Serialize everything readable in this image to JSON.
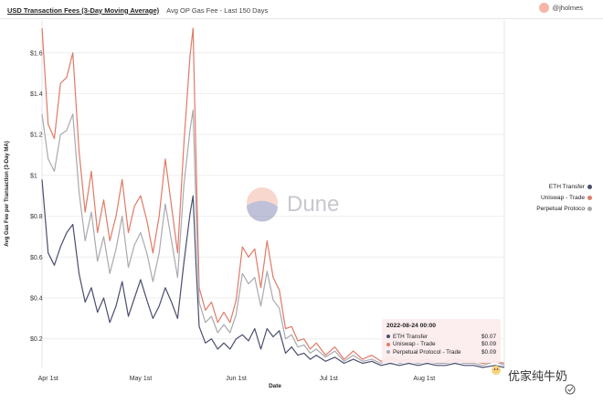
{
  "header": {
    "title": "USD Transaction Fees (3-Day Moving Average)",
    "subtitle": "Avg OP Gas Fee - Last 150 Days",
    "author": "@jholmes"
  },
  "watermark": {
    "brand": "Dune",
    "corner_text": "优家纯牛奶"
  },
  "colors": {
    "eth": "#4a4e6e",
    "uniswap": "#e07a66",
    "perp": "#a9a9b0",
    "avatar": "#f4b7a8"
  },
  "tooltip": {
    "title": "2022-08-24 00:00",
    "rows": [
      {
        "label": "ETH Transfer",
        "value": "$0.07"
      },
      {
        "label": "Uniswap - Trade",
        "value": "$0.09"
      },
      {
        "label": "Perpetual Protocol - Trade",
        "value": "$0.09"
      }
    ]
  },
  "chart_data": {
    "type": "line",
    "title": "",
    "xlabel": "Date",
    "ylabel": "Avg Gas Fee per Transaction (3-Day MA)",
    "ylim": [
      0.06,
      1.76
    ],
    "yticks": [
      0.2,
      0.4,
      0.6,
      0.8,
      1,
      1.2,
      1.4,
      1.6
    ],
    "ytick_labels": [
      "$0.2",
      "$0.4",
      "$0.6",
      "$0.8",
      "$1",
      "$1.2",
      "$1.4",
      "$1.6"
    ],
    "x_start": "2022-03-30",
    "xlim": [
      "2022-03-30",
      "2022-08-27"
    ],
    "xticks": [
      "2022-04-01",
      "2022-05-01",
      "2022-06-01",
      "2022-07-01",
      "2022-08-01"
    ],
    "xtick_labels": [
      "Apr 1st",
      "May 1st",
      "Jun 1st",
      "Jul 1st",
      "Aug 1st"
    ],
    "legend_position": "right",
    "grid": "y",
    "series": [
      {
        "name": "ETH Transfer",
        "color": "#4a4e6e",
        "points": [
          [
            "2022-03-30",
            0.98
          ],
          [
            "2022-04-01",
            0.62
          ],
          [
            "2022-04-03",
            0.56
          ],
          [
            "2022-04-05",
            0.65
          ],
          [
            "2022-04-07",
            0.72
          ],
          [
            "2022-04-09",
            0.76
          ],
          [
            "2022-04-11",
            0.52
          ],
          [
            "2022-04-13",
            0.38
          ],
          [
            "2022-04-15",
            0.45
          ],
          [
            "2022-04-17",
            0.33
          ],
          [
            "2022-04-19",
            0.4
          ],
          [
            "2022-04-21",
            0.28
          ],
          [
            "2022-04-23",
            0.36
          ],
          [
            "2022-04-25",
            0.48
          ],
          [
            "2022-04-27",
            0.31
          ],
          [
            "2022-04-29",
            0.4
          ],
          [
            "2022-05-01",
            0.49
          ],
          [
            "2022-05-03",
            0.39
          ],
          [
            "2022-05-05",
            0.3
          ],
          [
            "2022-05-07",
            0.36
          ],
          [
            "2022-05-09",
            0.45
          ],
          [
            "2022-05-11",
            0.38
          ],
          [
            "2022-05-13",
            0.3
          ],
          [
            "2022-05-15",
            0.57
          ],
          [
            "2022-05-17",
            0.81
          ],
          [
            "2022-05-18",
            0.9
          ],
          [
            "2022-05-19",
            0.55
          ],
          [
            "2022-05-20",
            0.26
          ],
          [
            "2022-05-22",
            0.18
          ],
          [
            "2022-05-24",
            0.2
          ],
          [
            "2022-05-26",
            0.15
          ],
          [
            "2022-05-28",
            0.18
          ],
          [
            "2022-05-30",
            0.15
          ],
          [
            "2022-06-01",
            0.2
          ],
          [
            "2022-06-03",
            0.22
          ],
          [
            "2022-06-05",
            0.19
          ],
          [
            "2022-06-07",
            0.25
          ],
          [
            "2022-06-09",
            0.15
          ],
          [
            "2022-06-11",
            0.25
          ],
          [
            "2022-06-13",
            0.21
          ],
          [
            "2022-06-15",
            0.24
          ],
          [
            "2022-06-17",
            0.13
          ],
          [
            "2022-06-19",
            0.16
          ],
          [
            "2022-06-21",
            0.12
          ],
          [
            "2022-06-23",
            0.13
          ],
          [
            "2022-06-25",
            0.1
          ],
          [
            "2022-06-27",
            0.12
          ],
          [
            "2022-06-30",
            0.09
          ],
          [
            "2022-07-03",
            0.11
          ],
          [
            "2022-07-06",
            0.08
          ],
          [
            "2022-07-09",
            0.1
          ],
          [
            "2022-07-12",
            0.08
          ],
          [
            "2022-07-15",
            0.09
          ],
          [
            "2022-07-18",
            0.07
          ],
          [
            "2022-07-21",
            0.08
          ],
          [
            "2022-07-24",
            0.07
          ],
          [
            "2022-07-27",
            0.08
          ],
          [
            "2022-07-30",
            0.07
          ],
          [
            "2022-08-02",
            0.08
          ],
          [
            "2022-08-05",
            0.07
          ],
          [
            "2022-08-08",
            0.07
          ],
          [
            "2022-08-11",
            0.08
          ],
          [
            "2022-08-14",
            0.07
          ],
          [
            "2022-08-17",
            0.07
          ],
          [
            "2022-08-20",
            0.06
          ],
          [
            "2022-08-24",
            0.07
          ],
          [
            "2022-08-27",
            0.06
          ]
        ]
      },
      {
        "name": "Uniswap - Trade",
        "color": "#e07a66",
        "points": [
          [
            "2022-03-30",
            1.72
          ],
          [
            "2022-04-01",
            1.25
          ],
          [
            "2022-04-03",
            1.18
          ],
          [
            "2022-04-05",
            1.45
          ],
          [
            "2022-04-07",
            1.48
          ],
          [
            "2022-04-09",
            1.6
          ],
          [
            "2022-04-11",
            1.12
          ],
          [
            "2022-04-13",
            0.82
          ],
          [
            "2022-04-15",
            1.02
          ],
          [
            "2022-04-17",
            0.72
          ],
          [
            "2022-04-19",
            0.88
          ],
          [
            "2022-04-21",
            0.68
          ],
          [
            "2022-04-23",
            0.8
          ],
          [
            "2022-04-25",
            0.98
          ],
          [
            "2022-04-27",
            0.72
          ],
          [
            "2022-04-29",
            0.85
          ],
          [
            "2022-05-01",
            0.9
          ],
          [
            "2022-05-03",
            0.78
          ],
          [
            "2022-05-05",
            0.62
          ],
          [
            "2022-05-07",
            0.8
          ],
          [
            "2022-05-09",
            1.08
          ],
          [
            "2022-05-11",
            0.85
          ],
          [
            "2022-05-13",
            0.62
          ],
          [
            "2022-05-15",
            1.15
          ],
          [
            "2022-05-17",
            1.58
          ],
          [
            "2022-05-18",
            1.72
          ],
          [
            "2022-05-19",
            1.05
          ],
          [
            "2022-05-20",
            0.45
          ],
          [
            "2022-05-22",
            0.34
          ],
          [
            "2022-05-24",
            0.38
          ],
          [
            "2022-05-26",
            0.28
          ],
          [
            "2022-05-28",
            0.33
          ],
          [
            "2022-05-30",
            0.28
          ],
          [
            "2022-06-01",
            0.39
          ],
          [
            "2022-06-03",
            0.65
          ],
          [
            "2022-06-05",
            0.6
          ],
          [
            "2022-06-07",
            0.64
          ],
          [
            "2022-06-09",
            0.45
          ],
          [
            "2022-06-11",
            0.68
          ],
          [
            "2022-06-13",
            0.5
          ],
          [
            "2022-06-15",
            0.44
          ],
          [
            "2022-06-17",
            0.25
          ],
          [
            "2022-06-19",
            0.26
          ],
          [
            "2022-06-21",
            0.19
          ],
          [
            "2022-06-23",
            0.2
          ],
          [
            "2022-06-25",
            0.15
          ],
          [
            "2022-06-27",
            0.18
          ],
          [
            "2022-06-30",
            0.12
          ],
          [
            "2022-07-03",
            0.16
          ],
          [
            "2022-07-06",
            0.1
          ],
          [
            "2022-07-09",
            0.14
          ],
          [
            "2022-07-12",
            0.1
          ],
          [
            "2022-07-15",
            0.12
          ],
          [
            "2022-07-18",
            0.09
          ],
          [
            "2022-07-21",
            0.11
          ],
          [
            "2022-07-24",
            0.09
          ],
          [
            "2022-07-27",
            0.1
          ],
          [
            "2022-07-30",
            0.09
          ],
          [
            "2022-08-02",
            0.1
          ],
          [
            "2022-08-05",
            0.08
          ],
          [
            "2022-08-08",
            0.09
          ],
          [
            "2022-08-11",
            0.1
          ],
          [
            "2022-08-14",
            0.09
          ],
          [
            "2022-08-17",
            0.09
          ],
          [
            "2022-08-20",
            0.08
          ],
          [
            "2022-08-24",
            0.09
          ],
          [
            "2022-08-27",
            0.08
          ]
        ]
      },
      {
        "name": "Perpetual Protocol - Trade",
        "legend_label": "Perpetual Protoco",
        "color": "#a9a9b0",
        "points": [
          [
            "2022-03-30",
            1.3
          ],
          [
            "2022-04-01",
            1.08
          ],
          [
            "2022-04-03",
            1.02
          ],
          [
            "2022-04-05",
            1.2
          ],
          [
            "2022-04-07",
            1.22
          ],
          [
            "2022-04-09",
            1.3
          ],
          [
            "2022-04-11",
            0.92
          ],
          [
            "2022-04-13",
            0.68
          ],
          [
            "2022-04-15",
            0.82
          ],
          [
            "2022-04-17",
            0.58
          ],
          [
            "2022-04-19",
            0.7
          ],
          [
            "2022-04-21",
            0.52
          ],
          [
            "2022-04-23",
            0.64
          ],
          [
            "2022-04-25",
            0.8
          ],
          [
            "2022-04-27",
            0.55
          ],
          [
            "2022-04-29",
            0.66
          ],
          [
            "2022-05-01",
            0.72
          ],
          [
            "2022-05-03",
            0.62
          ],
          [
            "2022-05-05",
            0.48
          ],
          [
            "2022-05-07",
            0.62
          ],
          [
            "2022-05-09",
            0.86
          ],
          [
            "2022-05-11",
            0.68
          ],
          [
            "2022-05-13",
            0.5
          ],
          [
            "2022-05-15",
            0.95
          ],
          [
            "2022-05-17",
            1.22
          ],
          [
            "2022-05-18",
            1.32
          ],
          [
            "2022-05-19",
            0.82
          ],
          [
            "2022-05-20",
            0.38
          ],
          [
            "2022-05-22",
            0.28
          ],
          [
            "2022-05-24",
            0.31
          ],
          [
            "2022-05-26",
            0.23
          ],
          [
            "2022-05-28",
            0.27
          ],
          [
            "2022-05-30",
            0.23
          ],
          [
            "2022-06-01",
            0.32
          ],
          [
            "2022-06-03",
            0.52
          ],
          [
            "2022-06-05",
            0.47
          ],
          [
            "2022-06-07",
            0.5
          ],
          [
            "2022-06-09",
            0.36
          ],
          [
            "2022-06-11",
            0.53
          ],
          [
            "2022-06-13",
            0.39
          ],
          [
            "2022-06-15",
            0.35
          ],
          [
            "2022-06-17",
            0.2
          ],
          [
            "2022-06-19",
            0.22
          ],
          [
            "2022-06-21",
            0.16
          ],
          [
            "2022-06-23",
            0.17
          ],
          [
            "2022-06-25",
            0.13
          ],
          [
            "2022-06-27",
            0.15
          ],
          [
            "2022-06-30",
            0.11
          ],
          [
            "2022-07-03",
            0.14
          ],
          [
            "2022-07-06",
            0.09
          ],
          [
            "2022-07-09",
            0.12
          ],
          [
            "2022-07-12",
            0.09
          ],
          [
            "2022-07-15",
            0.1
          ],
          [
            "2022-07-18",
            0.08
          ],
          [
            "2022-07-21",
            0.1
          ],
          [
            "2022-07-24",
            0.08
          ],
          [
            "2022-07-27",
            0.09
          ],
          [
            "2022-07-30",
            0.08
          ],
          [
            "2022-08-02",
            0.09
          ],
          [
            "2022-08-05",
            0.08
          ],
          [
            "2022-08-08",
            0.08
          ],
          [
            "2022-08-11",
            0.09
          ],
          [
            "2022-08-14",
            0.08
          ],
          [
            "2022-08-17",
            0.08
          ],
          [
            "2022-08-20",
            0.07
          ],
          [
            "2022-08-24",
            0.09
          ],
          [
            "2022-08-27",
            0.07
          ]
        ]
      }
    ]
  }
}
